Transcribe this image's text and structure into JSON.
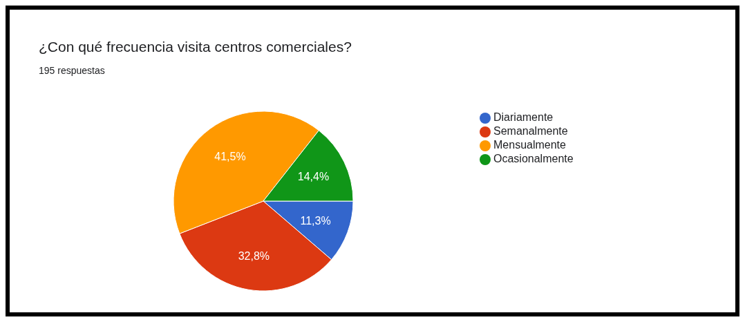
{
  "chart_data": {
    "type": "pie",
    "title": "¿Con qué frecuencia visita centros comerciales?",
    "subtitle": "195 respuestas",
    "categories": [
      "Diariamente",
      "Semanalmente",
      "Mensualmente",
      "Ocasionalmente"
    ],
    "values": [
      11.3,
      32.8,
      41.5,
      14.4
    ],
    "value_labels": [
      "11,3%",
      "32,8%",
      "41,5%",
      "14,4%"
    ],
    "colors": [
      "#3366cc",
      "#dc3912",
      "#ff9900",
      "#109618"
    ],
    "legend": "right"
  }
}
